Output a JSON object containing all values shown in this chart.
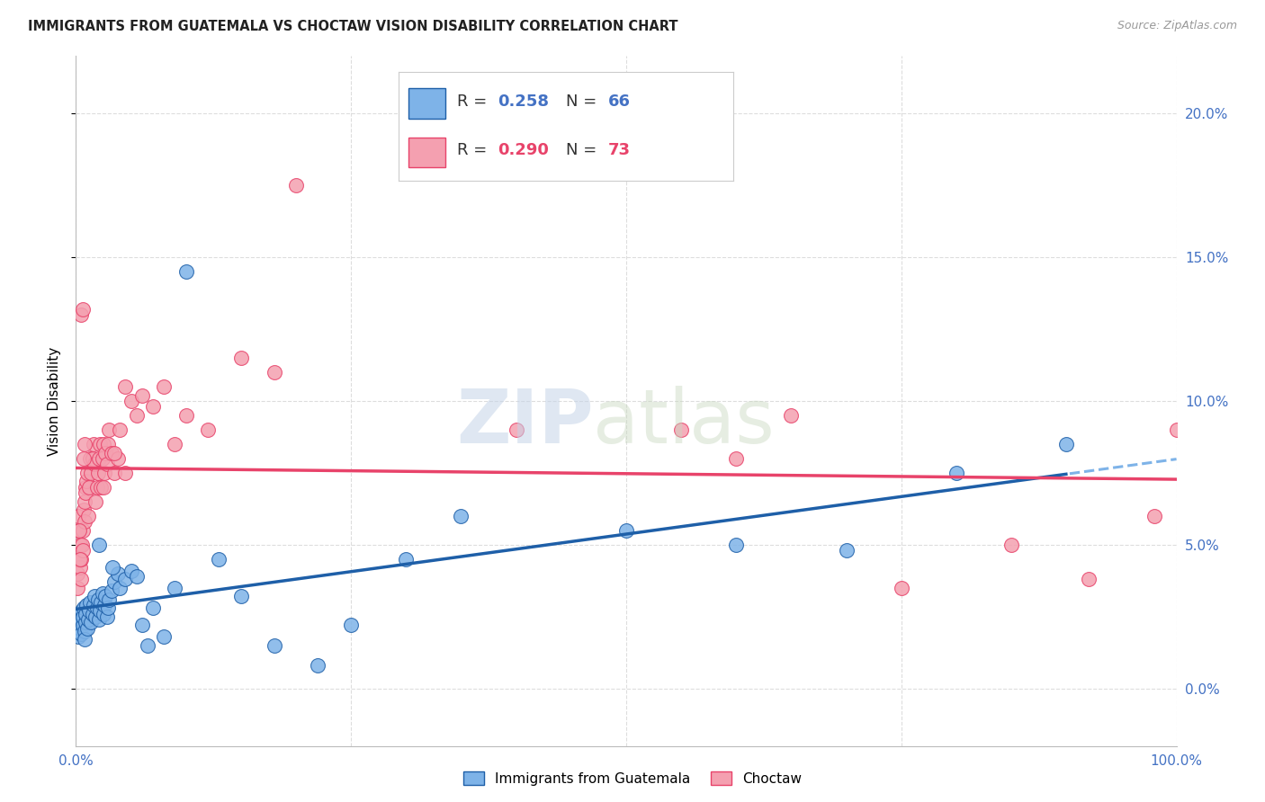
{
  "title": "IMMIGRANTS FROM GUATEMALA VS CHOCTAW VISION DISABILITY CORRELATION CHART",
  "source": "Source: ZipAtlas.com",
  "ylabel": "Vision Disability",
  "ytick_vals": [
    0.0,
    5.0,
    10.0,
    15.0,
    20.0
  ],
  "xlim": [
    0,
    100
  ],
  "ylim": [
    -2.0,
    22
  ],
  "blue_color": "#7EB3E8",
  "pink_color": "#F4A0B0",
  "blue_line_color": "#1E5FA8",
  "pink_line_color": "#E8436A",
  "r_blue": 0.258,
  "n_blue": 66,
  "r_pink": 0.29,
  "n_pink": 73,
  "legend_label_blue": "Immigrants from Guatemala",
  "legend_label_pink": "Choctaw",
  "blue_scatter_x": [
    0.1,
    0.15,
    0.2,
    0.25,
    0.3,
    0.35,
    0.4,
    0.45,
    0.5,
    0.55,
    0.6,
    0.65,
    0.7,
    0.75,
    0.8,
    0.85,
    0.9,
    0.95,
    1.0,
    1.1,
    1.2,
    1.3,
    1.4,
    1.5,
    1.6,
    1.7,
    1.8,
    1.9,
    2.0,
    2.1,
    2.2,
    2.3,
    2.4,
    2.5,
    2.6,
    2.7,
    2.8,
    2.9,
    3.0,
    3.2,
    3.5,
    3.8,
    4.0,
    4.5,
    5.0,
    5.5,
    6.0,
    6.5,
    7.0,
    8.0,
    9.0,
    10.0,
    13.0,
    15.0,
    18.0,
    22.0,
    25.0,
    30.0,
    35.0,
    50.0,
    60.0,
    70.0,
    80.0,
    90.0,
    2.1,
    3.3
  ],
  "blue_scatter_y": [
    2.2,
    2.5,
    2.0,
    1.8,
    2.3,
    2.6,
    2.1,
    2.4,
    1.9,
    2.7,
    2.2,
    2.5,
    2.8,
    2.0,
    1.7,
    2.3,
    2.6,
    2.9,
    2.1,
    2.4,
    2.7,
    3.0,
    2.3,
    2.6,
    2.9,
    3.2,
    2.5,
    2.8,
    3.1,
    2.4,
    2.7,
    3.0,
    3.3,
    2.6,
    2.9,
    3.2,
    2.5,
    2.8,
    3.1,
    3.4,
    3.7,
    4.0,
    3.5,
    3.8,
    4.1,
    3.9,
    2.2,
    1.5,
    2.8,
    1.8,
    3.5,
    14.5,
    4.5,
    3.2,
    1.5,
    0.8,
    2.2,
    4.5,
    6.0,
    5.5,
    5.0,
    4.8,
    7.5,
    8.5,
    5.0,
    4.2
  ],
  "pink_scatter_x": [
    0.1,
    0.15,
    0.2,
    0.25,
    0.3,
    0.35,
    0.4,
    0.45,
    0.5,
    0.55,
    0.6,
    0.65,
    0.7,
    0.75,
    0.8,
    0.85,
    0.9,
    0.95,
    1.0,
    1.1,
    1.2,
    1.3,
    1.4,
    1.5,
    1.6,
    1.7,
    1.8,
    1.9,
    2.0,
    2.1,
    2.2,
    2.3,
    2.4,
    2.5,
    2.6,
    2.7,
    2.8,
    2.9,
    3.0,
    3.2,
    3.5,
    3.8,
    4.0,
    4.5,
    5.0,
    5.5,
    6.0,
    7.0,
    8.0,
    9.0,
    10.0,
    12.0,
    15.0,
    18.0,
    20.0,
    40.0,
    55.0,
    65.0,
    75.0,
    85.0,
    92.0,
    98.0,
    100.0,
    0.3,
    0.4,
    0.5,
    0.6,
    0.7,
    0.8,
    2.5,
    3.5,
    4.5,
    60.0
  ],
  "pink_scatter_y": [
    3.5,
    4.0,
    5.5,
    6.0,
    4.5,
    5.0,
    4.2,
    3.8,
    4.5,
    5.0,
    4.8,
    5.5,
    6.2,
    5.8,
    6.5,
    7.0,
    6.8,
    7.2,
    7.5,
    6.0,
    7.0,
    8.0,
    7.5,
    8.0,
    8.5,
    7.8,
    6.5,
    7.0,
    7.5,
    8.0,
    8.5,
    7.0,
    8.0,
    8.5,
    7.5,
    8.2,
    7.8,
    8.5,
    9.0,
    8.2,
    7.5,
    8.0,
    9.0,
    10.5,
    10.0,
    9.5,
    10.2,
    9.8,
    10.5,
    8.5,
    9.5,
    9.0,
    11.5,
    11.0,
    17.5,
    9.0,
    9.0,
    9.5,
    3.5,
    5.0,
    3.8,
    6.0,
    9.0,
    5.5,
    4.5,
    13.0,
    13.2,
    8.0,
    8.5,
    7.0,
    8.2,
    7.5,
    8.0
  ],
  "grid_color": "#DDDDDD",
  "background_color": "#FFFFFF"
}
